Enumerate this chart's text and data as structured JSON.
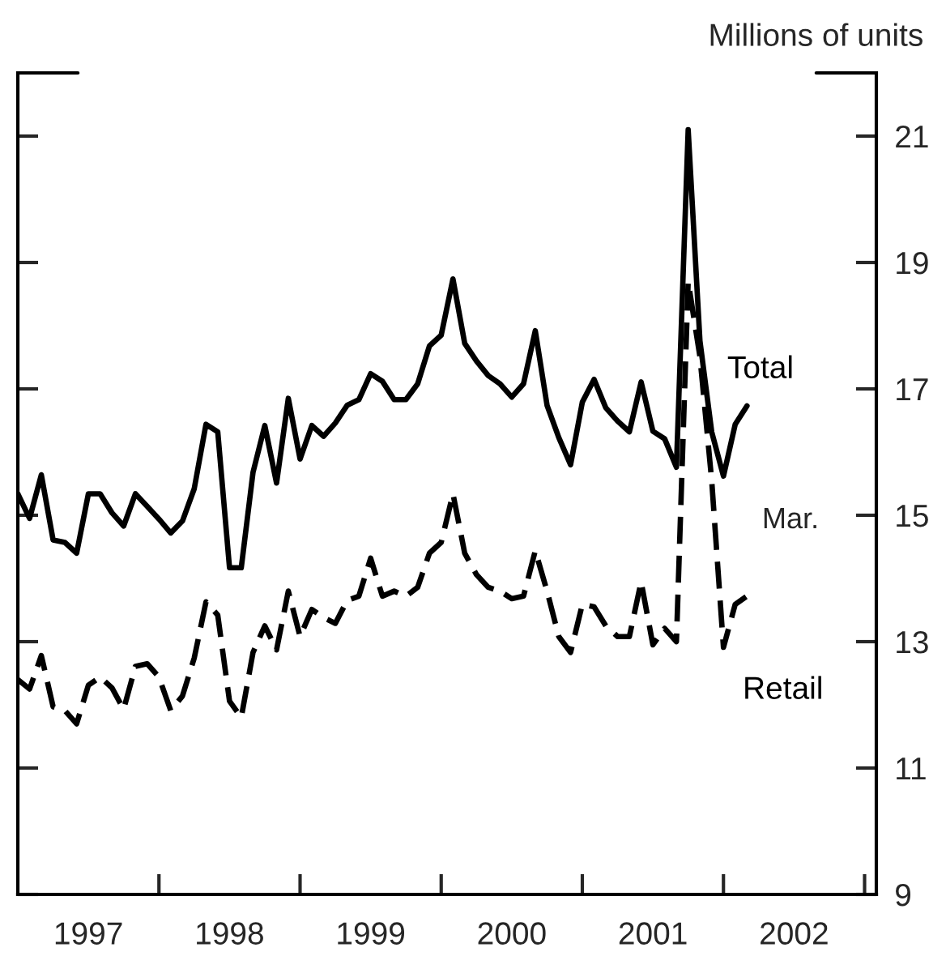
{
  "chart_data": {
    "type": "line",
    "ylabel": "Millions of units",
    "x": [
      "1997-01",
      "1997-02",
      "1997-03",
      "1997-04",
      "1997-05",
      "1997-06",
      "1997-07",
      "1997-08",
      "1997-09",
      "1997-10",
      "1997-11",
      "1997-12",
      "1998-01",
      "1998-02",
      "1998-03",
      "1998-04",
      "1998-05",
      "1998-06",
      "1998-07",
      "1998-08",
      "1998-09",
      "1998-10",
      "1998-11",
      "1998-12",
      "1999-01",
      "1999-02",
      "1999-03",
      "1999-04",
      "1999-05",
      "1999-06",
      "1999-07",
      "1999-08",
      "1999-09",
      "1999-10",
      "1999-11",
      "1999-12",
      "2000-01",
      "2000-02",
      "2000-03",
      "2000-04",
      "2000-05",
      "2000-06",
      "2000-07",
      "2000-08",
      "2000-09",
      "2000-10",
      "2000-11",
      "2000-12",
      "2001-01",
      "2001-02",
      "2001-03",
      "2001-04",
      "2001-05",
      "2001-06",
      "2001-07",
      "2001-08",
      "2001-09",
      "2001-10",
      "2001-11",
      "2001-12",
      "2002-01",
      "2002-02",
      "2002-03"
    ],
    "series": [
      {
        "name": "Total",
        "color": "#000000",
        "line_style": "solid",
        "values": [
          15.34,
          14.95,
          15.64,
          14.61,
          14.57,
          14.4,
          15.34,
          15.34,
          15.04,
          14.83,
          15.34,
          15.14,
          14.94,
          14.72,
          14.91,
          15.42,
          16.44,
          16.32,
          14.17,
          14.17,
          15.68,
          16.42,
          15.51,
          16.85,
          15.89,
          16.42,
          16.25,
          16.46,
          16.74,
          16.83,
          17.24,
          17.12,
          16.83,
          16.83,
          17.08,
          17.68,
          17.85,
          18.74,
          17.72,
          17.44,
          17.21,
          17.08,
          16.87,
          17.08,
          17.92,
          16.74,
          16.23,
          15.8,
          16.79,
          17.15,
          16.7,
          16.49,
          16.32,
          17.11,
          16.33,
          16.21,
          15.76,
          21.1,
          17.76,
          16.32,
          15.62,
          16.44,
          16.73
        ]
      },
      {
        "name": "Retail",
        "color": "#000000",
        "line_style": "dashed",
        "values": [
          12.4,
          12.25,
          12.78,
          11.97,
          11.91,
          11.7,
          12.31,
          12.44,
          12.27,
          11.93,
          12.61,
          12.65,
          12.44,
          11.91,
          12.14,
          12.74,
          13.63,
          13.42,
          12.06,
          11.8,
          12.83,
          13.25,
          12.87,
          13.8,
          13.08,
          13.51,
          13.38,
          13.29,
          13.65,
          13.72,
          14.32,
          13.72,
          13.8,
          13.72,
          13.86,
          14.4,
          14.57,
          15.34,
          14.4,
          14.06,
          13.86,
          13.8,
          13.68,
          13.72,
          14.44,
          13.8,
          13.08,
          12.83,
          13.59,
          13.55,
          13.25,
          13.08,
          13.08,
          13.95,
          12.95,
          13.21,
          13.0,
          18.7,
          17.51,
          15.55,
          12.91,
          13.59,
          13.72
        ]
      }
    ],
    "annotations": [
      "Mar."
    ],
    "xlim": [
      "1997-01",
      "2003-02"
    ],
    "xticks": [
      {
        "value": "1997-07",
        "label": "1997"
      },
      {
        "value": "1998-01",
        "label": null
      },
      {
        "value": "1998-07",
        "label": "1998"
      },
      {
        "value": "1999-01",
        "label": null
      },
      {
        "value": "1999-07",
        "label": "1999"
      },
      {
        "value": "2000-01",
        "label": null
      },
      {
        "value": "2000-07",
        "label": "2000"
      },
      {
        "value": "2001-01",
        "label": null
      },
      {
        "value": "2001-07",
        "label": "2001"
      },
      {
        "value": "2002-01",
        "label": null
      },
      {
        "value": "2002-07",
        "label": "2002"
      },
      {
        "value": "2003-01",
        "label": null
      }
    ],
    "ylim": [
      9,
      22
    ],
    "yticks": [
      9,
      11,
      13,
      15,
      17,
      19,
      21
    ],
    "grid": false,
    "legend": false,
    "marker": "none"
  }
}
